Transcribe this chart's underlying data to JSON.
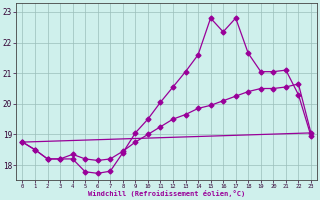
{
  "xlabel": "Windchill (Refroidissement éolien,°C)",
  "ylabel": "",
  "xlim": [
    -0.5,
    23.5
  ],
  "ylim": [
    17.5,
    23.3
  ],
  "xticks": [
    0,
    1,
    2,
    3,
    4,
    5,
    6,
    7,
    8,
    9,
    10,
    11,
    12,
    13,
    14,
    15,
    16,
    17,
    18,
    19,
    20,
    21,
    22,
    23
  ],
  "yticks": [
    18,
    19,
    20,
    21,
    22,
    23
  ],
  "bg_color": "#cff0ec",
  "grid_color": "#9bbfba",
  "line_color": "#990099",
  "line1_x": [
    0,
    1,
    2,
    3,
    4,
    5,
    6,
    7,
    8,
    9,
    10,
    11,
    12,
    13,
    14,
    15,
    16,
    17,
    18,
    19,
    20,
    21,
    22,
    23
  ],
  "line1_y": [
    18.75,
    18.5,
    18.2,
    18.2,
    18.2,
    17.78,
    17.73,
    17.8,
    18.4,
    19.05,
    19.5,
    20.05,
    20.55,
    21.05,
    21.6,
    22.8,
    22.35,
    22.8,
    21.65,
    21.05,
    21.05,
    21.1,
    20.3,
    18.95
  ],
  "line2_x": [
    0,
    1,
    2,
    3,
    4,
    5,
    6,
    7,
    8,
    9,
    10,
    11,
    12,
    13,
    14,
    15,
    16,
    17,
    18,
    19,
    20,
    21,
    22,
    23
  ],
  "line2_y": [
    18.75,
    18.5,
    18.2,
    18.2,
    18.35,
    18.2,
    18.15,
    18.2,
    18.45,
    18.75,
    19.0,
    19.25,
    19.5,
    19.65,
    19.85,
    19.95,
    20.1,
    20.25,
    20.4,
    20.5,
    20.5,
    20.55,
    20.65,
    19.05
  ],
  "line3_x": [
    0,
    23
  ],
  "line3_y": [
    18.75,
    19.05
  ],
  "marker": "D",
  "markersize": 2.5,
  "linewidth": 0.9
}
